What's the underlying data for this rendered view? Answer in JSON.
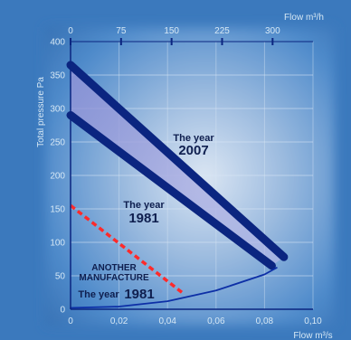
{
  "chart_data": {
    "type": "line",
    "xlabel_bottom": "Flow m³/s",
    "xlabel_top": "Flow m³/h",
    "ylabel": "Total pressure Pa",
    "xlim": [
      0,
      0.1
    ],
    "ylim": [
      0,
      400
    ],
    "x_ticks": [
      "0",
      "0,02",
      "0,04",
      "0,06",
      "0,08",
      "0,10"
    ],
    "x_top_ticks": [
      0,
      75,
      150,
      225,
      300
    ],
    "y_ticks": [
      0,
      50,
      100,
      150,
      200,
      250,
      300,
      350,
      400
    ],
    "series": [
      {
        "name": "The year 2007",
        "points": [
          [
            0.0,
            365
          ],
          [
            0.088,
            78
          ]
        ]
      },
      {
        "name": "The year 1981",
        "points": [
          [
            0.0,
            290
          ],
          [
            0.083,
            65
          ]
        ]
      },
      {
        "name": "ANOTHER MANUFACTURE The year 1981",
        "points": [
          [
            0.0,
            155
          ],
          [
            0.046,
            25
          ]
        ]
      },
      {
        "name": "",
        "points": [
          [
            0.0,
            2
          ],
          [
            0.02,
            4
          ],
          [
            0.04,
            12
          ],
          [
            0.06,
            28
          ],
          [
            0.08,
            52
          ],
          [
            0.085,
            62
          ]
        ]
      }
    ],
    "annotations": {
      "y2007_line1": "The year",
      "y2007_line2": "2007",
      "y1981_line1": "The year",
      "y1981_line2": "1981",
      "other_line1": "ANOTHER",
      "other_line2": "MANUFACTURE",
      "other_line3a": "The year",
      "other_line3b": "1981"
    },
    "colors": {
      "background": "#3b79bd",
      "curve_2007": "#0b2580",
      "curve_1981": "#0b2580",
      "curve_other": "#ff2a2a",
      "system_curve": "#0d2fa6"
    }
  }
}
